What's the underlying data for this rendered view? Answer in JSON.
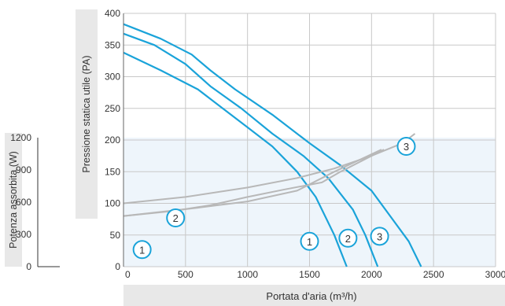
{
  "chart_data": {
    "type": "line",
    "xlabel": "Portata d'aria (m³/h)",
    "ylabel": "Pressione statica utile (PA)",
    "y2label": "Potenza assorbita (W)",
    "xlim": [
      0,
      3000
    ],
    "ylim": [
      0,
      400
    ],
    "y2lim": [
      0,
      1200
    ],
    "xticks": [
      0,
      500,
      1000,
      1500,
      2000,
      2500,
      3000
    ],
    "yticks": [
      0,
      50,
      100,
      150,
      200,
      250,
      300,
      350,
      400
    ],
    "y2ticks": [
      0,
      300,
      600,
      900,
      1200
    ],
    "grid": true,
    "colors": {
      "pressure": "#1aa3d9",
      "power": "#b8b8b8",
      "marker": "#1aa3d9",
      "label_bg": "#e8e8e8",
      "power_band": "#eef5fb",
      "grid": "#c8c8c8"
    },
    "pressure_series": [
      {
        "name": "1",
        "label_x": 1500,
        "label_y": 40,
        "points": [
          [
            0,
            338
          ],
          [
            300,
            310
          ],
          [
            600,
            280
          ],
          [
            800,
            250
          ],
          [
            1000,
            220
          ],
          [
            1200,
            190
          ],
          [
            1400,
            150
          ],
          [
            1550,
            110
          ],
          [
            1700,
            50
          ],
          [
            1800,
            0
          ]
        ]
      },
      {
        "name": "2",
        "label_x": 1810,
        "label_y": 45,
        "points": [
          [
            0,
            368
          ],
          [
            250,
            350
          ],
          [
            500,
            320
          ],
          [
            700,
            285
          ],
          [
            950,
            250
          ],
          [
            1200,
            210
          ],
          [
            1450,
            175
          ],
          [
            1650,
            140
          ],
          [
            1850,
            90
          ],
          [
            1950,
            50
          ],
          [
            2050,
            0
          ]
        ]
      },
      {
        "name": "3",
        "label_x": 2065,
        "label_y": 48,
        "points": [
          [
            0,
            383
          ],
          [
            300,
            360
          ],
          [
            550,
            335
          ],
          [
            700,
            310
          ],
          [
            900,
            280
          ],
          [
            1200,
            240
          ],
          [
            1500,
            195
          ],
          [
            1750,
            160
          ],
          [
            2000,
            120
          ],
          [
            2150,
            80
          ],
          [
            2300,
            40
          ],
          [
            2400,
            0
          ]
        ]
      }
    ],
    "power_series": [
      {
        "name": "1",
        "label_x": 150,
        "label_y": 27,
        "points": [
          [
            0,
            80
          ],
          [
            600,
            93
          ],
          [
            1000,
            103
          ],
          [
            1400,
            120
          ],
          [
            1700,
            150
          ],
          [
            2080,
            185
          ]
        ]
      },
      {
        "name": "2",
        "label_x": 420,
        "label_y": 77,
        "points": [
          [
            0,
            80
          ],
          [
            400,
            88
          ],
          [
            700,
            97
          ],
          [
            1000,
            110
          ],
          [
            1300,
            122
          ],
          [
            1600,
            133
          ],
          [
            1750,
            150
          ],
          [
            2100,
            185
          ]
        ]
      },
      {
        "name": "3",
        "label_x": 2280,
        "label_y": 190,
        "points": [
          [
            0,
            100
          ],
          [
            500,
            110
          ],
          [
            1000,
            125
          ],
          [
            1400,
            140
          ],
          [
            1700,
            155
          ],
          [
            2000,
            175
          ],
          [
            2250,
            195
          ],
          [
            2350,
            210
          ]
        ]
      }
    ]
  }
}
